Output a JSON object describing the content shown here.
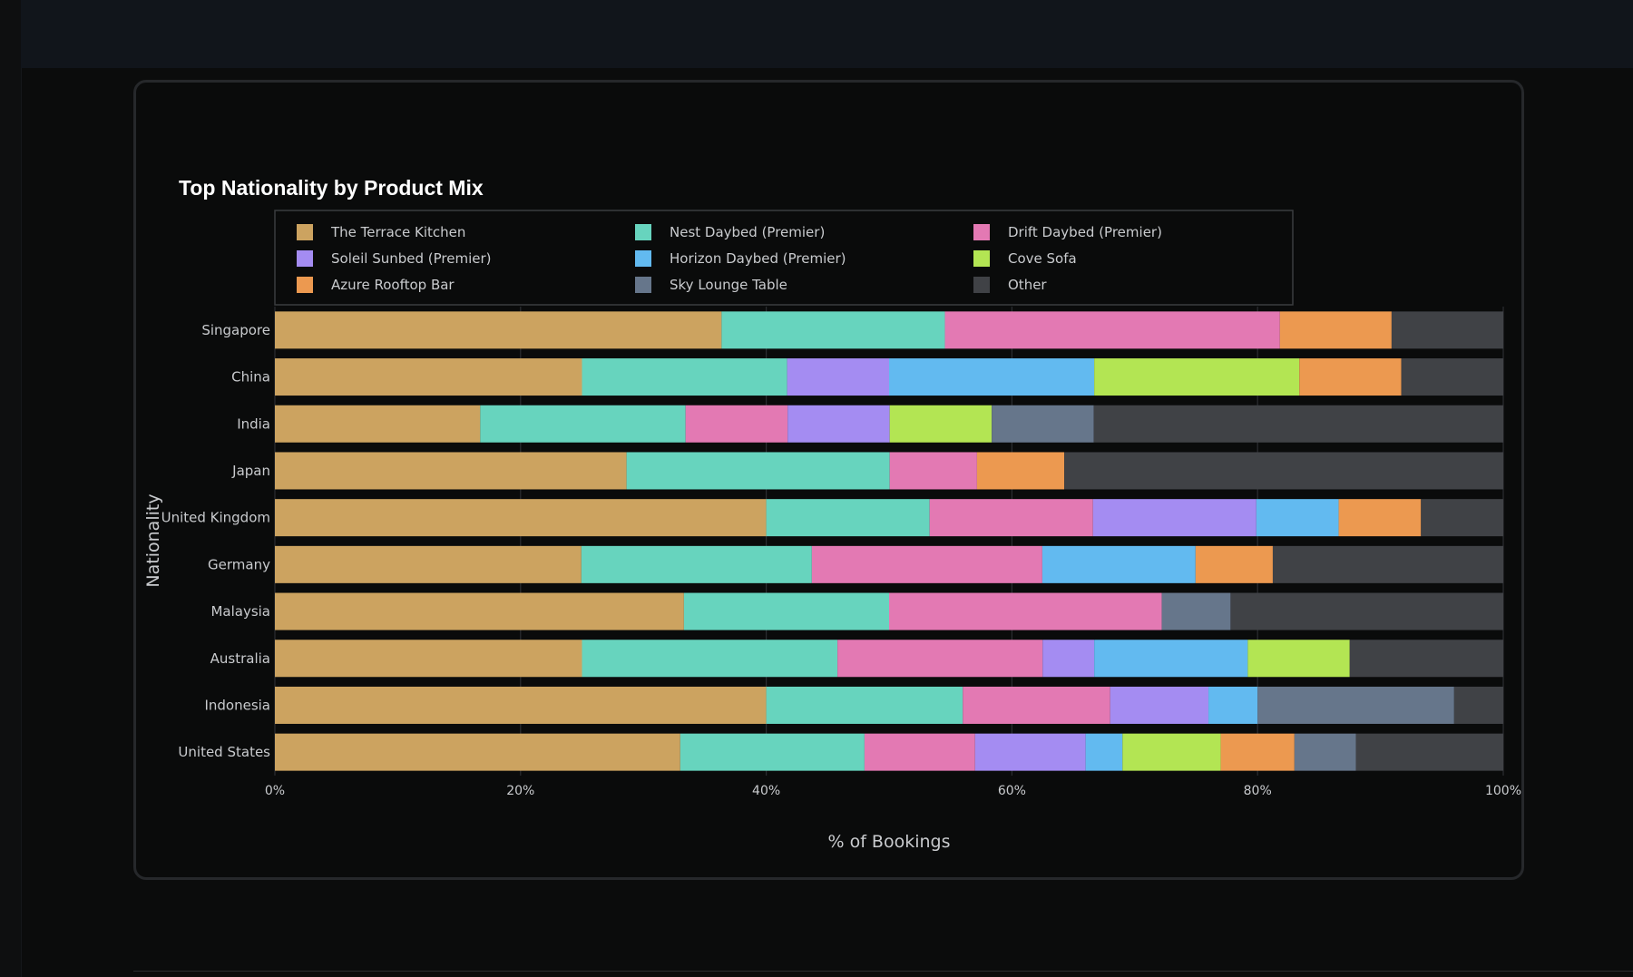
{
  "chart_data": {
    "type": "bar",
    "orientation": "horizontal",
    "stacked": true,
    "title": "Top Nationality by Product Mix",
    "xlabel": "% of Bookings",
    "ylabel": "Nationality",
    "xlim": [
      0,
      100
    ],
    "xticks": [
      "0%",
      "20%",
      "40%",
      "60%",
      "80%",
      "100%"
    ],
    "legend_position": "top",
    "grid": true,
    "categories": [
      "Singapore",
      "China",
      "India",
      "Japan",
      "United Kingdom",
      "Germany",
      "Malaysia",
      "Australia",
      "Indonesia",
      "United States"
    ],
    "series": [
      {
        "name": "The Terrace Kitchen",
        "color": "#cca360",
        "values": [
          36.4,
          25.0,
          16.7,
          28.6,
          40.0,
          25.0,
          33.3,
          25.0,
          40.0,
          33.0
        ]
      },
      {
        "name": "Nest Daybed (Premier)",
        "color": "#67d4be",
        "values": [
          18.2,
          16.7,
          16.7,
          21.4,
          13.3,
          18.8,
          16.7,
          20.8,
          16.0,
          15.0
        ]
      },
      {
        "name": "Drift Daybed (Premier)",
        "color": "#e379b3",
        "values": [
          27.3,
          0,
          8.3,
          7.1,
          13.3,
          18.8,
          22.2,
          16.7,
          12.0,
          9.0
        ]
      },
      {
        "name": "Soleil Sunbed (Premier)",
        "color": "#a48cf2",
        "values": [
          0,
          8.3,
          8.3,
          0,
          13.3,
          0,
          0,
          4.2,
          8.0,
          9.0
        ]
      },
      {
        "name": "Horizon Daybed (Premier)",
        "color": "#62baf0",
        "values": [
          0,
          16.7,
          0,
          0,
          6.7,
          12.5,
          0,
          12.5,
          4.0,
          3.0
        ]
      },
      {
        "name": "Cove Sofa",
        "color": "#b3e553",
        "values": [
          0,
          16.7,
          8.3,
          0,
          0,
          0,
          0,
          8.3,
          0,
          8.0
        ]
      },
      {
        "name": "Azure Rooftop Bar",
        "color": "#ec9950",
        "values": [
          9.1,
          8.3,
          0,
          7.1,
          6.7,
          6.3,
          0,
          0,
          0,
          6.0
        ]
      },
      {
        "name": "Sky Lounge Table",
        "color": "#66768b",
        "values": [
          0,
          0,
          8.3,
          0,
          0,
          0,
          5.6,
          0,
          16.0,
          5.0
        ]
      },
      {
        "name": "Other",
        "color": "#404246",
        "values": [
          9.1,
          8.3,
          33.3,
          35.7,
          6.7,
          18.8,
          22.2,
          12.5,
          4.0,
          12.0
        ]
      }
    ]
  }
}
